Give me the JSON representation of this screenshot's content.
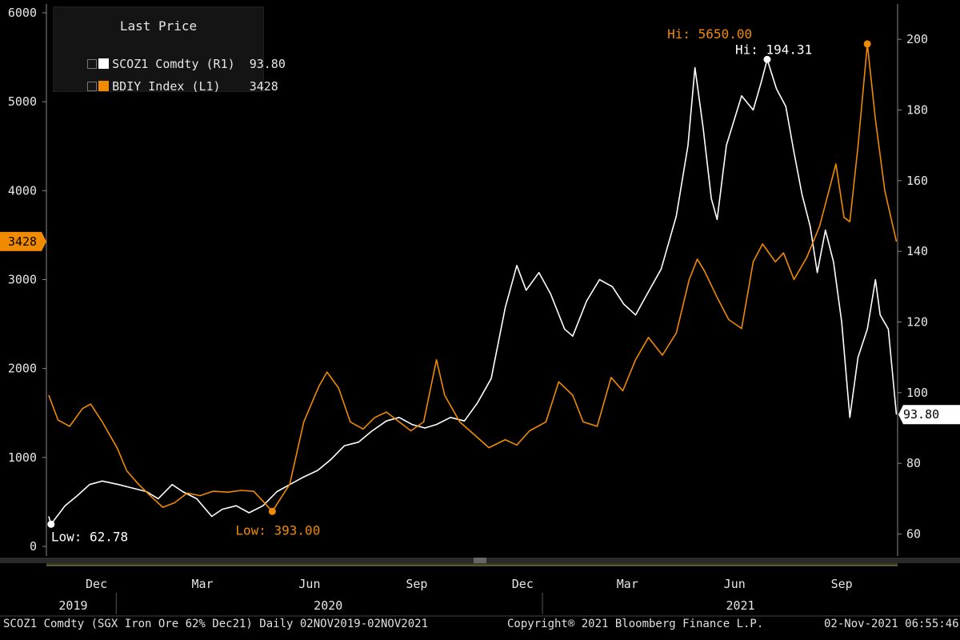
{
  "chart_data": {
    "type": "line",
    "legend": {
      "title": "Last Price",
      "placement": "top-left",
      "entries": [
        {
          "name": "SCOZ1 Comdty",
          "axis_ref": "(R1)",
          "last": "93.80",
          "color": "#ffffff"
        },
        {
          "name": "BDIY Index",
          "axis_ref": "(L1)",
          "last": "3428",
          "color": "#f08a00"
        }
      ]
    },
    "left_axis": {
      "ticks": [
        "6000",
        "5000",
        "4000",
        "3000",
        "2000",
        "1000",
        "0"
      ],
      "range": [
        0,
        6000
      ],
      "last_label": "3428"
    },
    "right_axis": {
      "ticks": [
        "200",
        "180",
        "160",
        "140",
        "120",
        "100",
        "80",
        "60"
      ],
      "range": [
        56.5,
        207.5
      ],
      "last_label": "93.80"
    },
    "x_axis": {
      "months": [
        "Dec",
        "Mar",
        "Jun",
        "Sep",
        "Dec",
        "Mar",
        "Jun",
        "Sep"
      ],
      "years": [
        "2019",
        "2020",
        "2021"
      ],
      "range": [
        "2019-11-02",
        "2021-11-02"
      ]
    },
    "annotations": [
      {
        "text": "Low: 62.78",
        "series": "SCOZ1 Comdty",
        "date": "2019-11-06",
        "value": 62.78
      },
      {
        "text": "Low: 393.00",
        "series": "BDIY Index",
        "date": "2020-05-14",
        "value": 393
      },
      {
        "text": "Hi: 5650.00",
        "series": "BDIY Index",
        "date": "2021-10-07",
        "value": 5650
      },
      {
        "text": "Hi: 194.31",
        "series": "SCOZ1 Comdty",
        "date": "2021-07-13",
        "value": 194.31
      }
    ],
    "series": [
      {
        "name": "SCOZ1 Comdty",
        "axis": "right",
        "color": "#ffffff",
        "points": [
          [
            "2019-11-04",
            65
          ],
          [
            "2019-11-06",
            62.78
          ],
          [
            "2019-11-18",
            68
          ],
          [
            "2019-11-29",
            71
          ],
          [
            "2019-12-09",
            74
          ],
          [
            "2019-12-20",
            75
          ],
          [
            "2020-01-03",
            74
          ],
          [
            "2020-01-15",
            73
          ],
          [
            "2020-01-27",
            72
          ],
          [
            "2020-02-06",
            70
          ],
          [
            "2020-02-18",
            74
          ],
          [
            "2020-02-27",
            72
          ],
          [
            "2020-03-10",
            70
          ],
          [
            "2020-03-23",
            65
          ],
          [
            "2020-04-01",
            67
          ],
          [
            "2020-04-13",
            68
          ],
          [
            "2020-04-24",
            66
          ],
          [
            "2020-05-06",
            68
          ],
          [
            "2020-05-18",
            72
          ],
          [
            "2020-05-29",
            74
          ],
          [
            "2020-06-09",
            76
          ],
          [
            "2020-06-22",
            78
          ],
          [
            "2020-07-03",
            81
          ],
          [
            "2020-07-15",
            85
          ],
          [
            "2020-07-27",
            86
          ],
          [
            "2020-08-07",
            89
          ],
          [
            "2020-08-20",
            92
          ],
          [
            "2020-08-31",
            93
          ],
          [
            "2020-09-11",
            91
          ],
          [
            "2020-09-22",
            90
          ],
          [
            "2020-10-02",
            91
          ],
          [
            "2020-10-14",
            93
          ],
          [
            "2020-10-26",
            92
          ],
          [
            "2020-11-06",
            97
          ],
          [
            "2020-11-18",
            104
          ],
          [
            "2020-11-30",
            124
          ],
          [
            "2020-12-10",
            136
          ],
          [
            "2020-12-18",
            129
          ],
          [
            "2020-12-29",
            134
          ],
          [
            "2021-01-08",
            128
          ],
          [
            "2021-01-20",
            118
          ],
          [
            "2021-01-27",
            116
          ],
          [
            "2021-02-08",
            126
          ],
          [
            "2021-02-19",
            132
          ],
          [
            "2021-03-02",
            130
          ],
          [
            "2021-03-12",
            125
          ],
          [
            "2021-03-22",
            122
          ],
          [
            "2021-04-01",
            128
          ],
          [
            "2021-04-13",
            135
          ],
          [
            "2021-04-26",
            150
          ],
          [
            "2021-05-06",
            170
          ],
          [
            "2021-05-12",
            192
          ],
          [
            "2021-05-19",
            175
          ],
          [
            "2021-05-26",
            155
          ],
          [
            "2021-05-31",
            149
          ],
          [
            "2021-06-08",
            170
          ],
          [
            "2021-06-21",
            184
          ],
          [
            "2021-07-01",
            180
          ],
          [
            "2021-07-08",
            188
          ],
          [
            "2021-07-13",
            194.31
          ],
          [
            "2021-07-21",
            186
          ],
          [
            "2021-07-29",
            181
          ],
          [
            "2021-08-05",
            168
          ],
          [
            "2021-08-12",
            156
          ],
          [
            "2021-08-19",
            147
          ],
          [
            "2021-08-25",
            134
          ],
          [
            "2021-09-01",
            146
          ],
          [
            "2021-09-08",
            137
          ],
          [
            "2021-09-15",
            120
          ],
          [
            "2021-09-22",
            93
          ],
          [
            "2021-09-29",
            110
          ],
          [
            "2021-10-07",
            118
          ],
          [
            "2021-10-14",
            132
          ],
          [
            "2021-10-18",
            122
          ],
          [
            "2021-10-25",
            118
          ],
          [
            "2021-11-01",
            93.8
          ]
        ]
      },
      {
        "name": "BDIY Index",
        "axis": "left",
        "color": "#f08a00",
        "points": [
          [
            "2019-11-04",
            1700
          ],
          [
            "2019-11-12",
            1420
          ],
          [
            "2019-11-22",
            1350
          ],
          [
            "2019-12-03",
            1550
          ],
          [
            "2019-12-10",
            1600
          ],
          [
            "2019-12-20",
            1400
          ],
          [
            "2020-01-02",
            1100
          ],
          [
            "2020-01-10",
            850
          ],
          [
            "2020-01-20",
            700
          ],
          [
            "2020-01-31",
            560
          ],
          [
            "2020-02-10",
            440
          ],
          [
            "2020-02-20",
            490
          ],
          [
            "2020-03-02",
            600
          ],
          [
            "2020-03-13",
            570
          ],
          [
            "2020-03-24",
            620
          ],
          [
            "2020-04-06",
            610
          ],
          [
            "2020-04-17",
            630
          ],
          [
            "2020-04-28",
            620
          ],
          [
            "2020-05-08",
            480
          ],
          [
            "2020-05-14",
            393
          ],
          [
            "2020-05-29",
            700
          ],
          [
            "2020-06-10",
            1400
          ],
          [
            "2020-06-23",
            1800
          ],
          [
            "2020-06-30",
            1960
          ],
          [
            "2020-07-10",
            1780
          ],
          [
            "2020-07-20",
            1400
          ],
          [
            "2020-07-31",
            1320
          ],
          [
            "2020-08-10",
            1450
          ],
          [
            "2020-08-20",
            1510
          ],
          [
            "2020-08-31",
            1400
          ],
          [
            "2020-09-10",
            1300
          ],
          [
            "2020-09-21",
            1400
          ],
          [
            "2020-10-02",
            2100
          ],
          [
            "2020-10-09",
            1700
          ],
          [
            "2020-10-22",
            1400
          ],
          [
            "2020-11-04",
            1250
          ],
          [
            "2020-11-16",
            1110
          ],
          [
            "2020-11-30",
            1200
          ],
          [
            "2020-12-10",
            1140
          ],
          [
            "2020-12-21",
            1300
          ],
          [
            "2021-01-04",
            1400
          ],
          [
            "2021-01-15",
            1850
          ],
          [
            "2021-01-27",
            1700
          ],
          [
            "2021-02-05",
            1400
          ],
          [
            "2021-02-17",
            1350
          ],
          [
            "2021-03-01",
            1900
          ],
          [
            "2021-03-11",
            1750
          ],
          [
            "2021-03-22",
            2100
          ],
          [
            "2021-04-02",
            2350
          ],
          [
            "2021-04-14",
            2150
          ],
          [
            "2021-04-26",
            2400
          ],
          [
            "2021-05-07",
            3000
          ],
          [
            "2021-05-14",
            3230
          ],
          [
            "2021-05-20",
            3100
          ],
          [
            "2021-05-31",
            2800
          ],
          [
            "2021-06-10",
            2550
          ],
          [
            "2021-06-21",
            2450
          ],
          [
            "2021-07-01",
            3200
          ],
          [
            "2021-07-09",
            3400
          ],
          [
            "2021-07-20",
            3200
          ],
          [
            "2021-07-27",
            3300
          ],
          [
            "2021-08-05",
            3000
          ],
          [
            "2021-08-16",
            3250
          ],
          [
            "2021-08-27",
            3600
          ],
          [
            "2021-09-03",
            3950
          ],
          [
            "2021-09-10",
            4300
          ],
          [
            "2021-09-17",
            3700
          ],
          [
            "2021-09-22",
            3650
          ],
          [
            "2021-09-29",
            4500
          ],
          [
            "2021-10-07",
            5650
          ],
          [
            "2021-10-14",
            4800
          ],
          [
            "2021-10-22",
            4000
          ],
          [
            "2021-11-01",
            3428
          ]
        ]
      }
    ]
  },
  "footer": {
    "left": "SCOZ1 Comdty (SGX Iron Ore 62% Dec21) Daily 02NOV2019-02NOV2021",
    "center": "Copyright® 2021 Bloomberg Finance L.P.",
    "right": "02-Nov-2021 06:55:46"
  }
}
